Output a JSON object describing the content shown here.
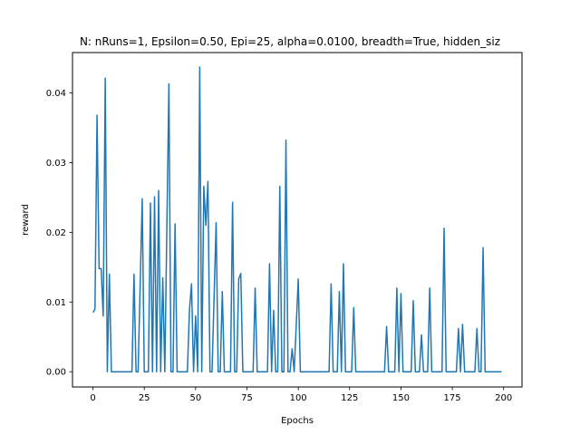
{
  "chart_data": {
    "type": "line",
    "title": "N: nRuns=1, Epsilon=0.50, Epi=25, alpha=0.0100, breadth=True, hidden_siz",
    "xlabel": "Epochs",
    "ylabel": "reward",
    "xlim": [
      -9.95,
      208.95
    ],
    "ylim": [
      -0.00218,
      0.04578
    ],
    "xticks": [
      0,
      25,
      50,
      75,
      100,
      125,
      150,
      175,
      200
    ],
    "yticks": [
      0.0,
      0.01,
      0.02,
      0.03,
      0.04
    ],
    "ytick_labels": [
      "0.00",
      "0.01",
      "0.02",
      "0.03",
      "0.04"
    ],
    "grid": false,
    "series": [
      {
        "color": "#1f77b4",
        "points": [
          [
            0,
            0.0085
          ],
          [
            1,
            0.009
          ],
          [
            2,
            0.0368
          ],
          [
            3,
            0.0148
          ],
          [
            4,
            0.0148
          ],
          [
            5,
            0.008
          ],
          [
            6,
            0.0421
          ],
          [
            7,
            0.0
          ],
          [
            8,
            0.014
          ],
          [
            9,
            0.0
          ],
          [
            19,
            0.0
          ],
          [
            20,
            0.014
          ],
          [
            21,
            0.0
          ],
          [
            22,
            0.0
          ],
          [
            24,
            0.0248
          ],
          [
            25,
            0.0
          ],
          [
            26,
            0.0
          ],
          [
            27,
            0.0
          ],
          [
            28,
            0.0242
          ],
          [
            29,
            0.0
          ],
          [
            30,
            0.0251
          ],
          [
            31,
            0.0
          ],
          [
            32,
            0.026
          ],
          [
            33,
            0.0
          ],
          [
            34,
            0.0135
          ],
          [
            35,
            0.0
          ],
          [
            37,
            0.0413
          ],
          [
            38,
            0.0
          ],
          [
            39,
            0.0
          ],
          [
            40,
            0.0212
          ],
          [
            41,
            0.0
          ],
          [
            46,
            0.0
          ],
          [
            47,
            0.0088
          ],
          [
            48,
            0.0126
          ],
          [
            49,
            0.0
          ],
          [
            50,
            0.008
          ],
          [
            51,
            0.0
          ],
          [
            52,
            0.0437
          ],
          [
            53,
            0.0
          ],
          [
            54,
            0.0266
          ],
          [
            55,
            0.021
          ],
          [
            56,
            0.0273
          ],
          [
            57,
            0.0
          ],
          [
            58,
            0.0
          ],
          [
            60,
            0.0214
          ],
          [
            61,
            0.0
          ],
          [
            62,
            0.0
          ],
          [
            63,
            0.0115
          ],
          [
            64,
            0.0
          ],
          [
            67,
            0.0
          ],
          [
            68,
            0.0243
          ],
          [
            69,
            0.0
          ],
          [
            70,
            0.0
          ],
          [
            71,
            0.0133
          ],
          [
            72,
            0.0141
          ],
          [
            73,
            0.0
          ],
          [
            78,
            0.0
          ],
          [
            79,
            0.012
          ],
          [
            80,
            0.0
          ],
          [
            85,
            0.0
          ],
          [
            86,
            0.0155
          ],
          [
            87,
            0.0
          ],
          [
            88,
            0.0088
          ],
          [
            89,
            0.0
          ],
          [
            90,
            0.0
          ],
          [
            91,
            0.0266
          ],
          [
            92,
            0.0
          ],
          [
            93,
            0.0
          ],
          [
            94,
            0.0332
          ],
          [
            95,
            0.0
          ],
          [
            96,
            0.0
          ],
          [
            97,
            0.0033
          ],
          [
            98,
            0.0
          ],
          [
            100,
            0.0133
          ],
          [
            101,
            0.0
          ],
          [
            115,
            0.0
          ],
          [
            116,
            0.0126
          ],
          [
            117,
            0.0
          ],
          [
            119,
            0.0
          ],
          [
            120,
            0.0115
          ],
          [
            121,
            0.0
          ],
          [
            122,
            0.0155
          ],
          [
            123,
            0.0
          ],
          [
            126,
            0.0
          ],
          [
            127,
            0.0092
          ],
          [
            128,
            0.0
          ],
          [
            142,
            0.0
          ],
          [
            143,
            0.0065
          ],
          [
            144,
            0.0
          ],
          [
            147,
            0.0
          ],
          [
            148,
            0.012
          ],
          [
            149,
            0.0
          ],
          [
            150,
            0.0112
          ],
          [
            151,
            0.0
          ],
          [
            155,
            0.0
          ],
          [
            156,
            0.0102
          ],
          [
            157,
            0.0
          ],
          [
            159,
            0.0
          ],
          [
            160,
            0.0053
          ],
          [
            161,
            0.0
          ],
          [
            163,
            0.0
          ],
          [
            164,
            0.012
          ],
          [
            165,
            0.0
          ],
          [
            170,
            0.0
          ],
          [
            171,
            0.0206
          ],
          [
            172,
            0.0
          ],
          [
            173,
            0.0
          ],
          [
            174,
            0.0
          ],
          [
            177,
            0.0
          ],
          [
            178,
            0.0062
          ],
          [
            179,
            0.0
          ],
          [
            180,
            0.0068
          ],
          [
            181,
            0.0
          ],
          [
            186,
            0.0
          ],
          [
            187,
            0.0062
          ],
          [
            188,
            0.0
          ],
          [
            189,
            0.0
          ],
          [
            190,
            0.0178
          ],
          [
            191,
            0.0
          ],
          [
            199,
            0.0
          ]
        ]
      }
    ]
  }
}
